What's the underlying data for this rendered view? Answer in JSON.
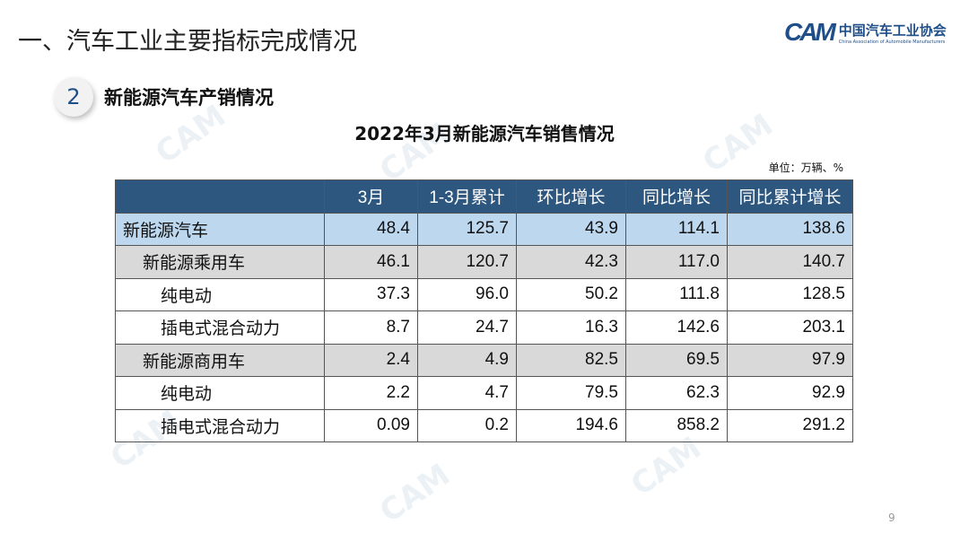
{
  "header": {
    "title": "一、汽车工业主要指标完成情况"
  },
  "logo": {
    "mark": "CAM",
    "name_cn": "中国汽车工业协会",
    "name_en": "China Association of Automobile Manufacturers"
  },
  "section": {
    "number": "2",
    "label": "新能源汽车产销情况"
  },
  "table": {
    "title": "2022年3月新能源汽车销售情况",
    "unit": "单位：万辆、%",
    "columns": [
      "",
      "3月",
      "1-3月累计",
      "环比增长",
      "同比增长",
      "同比累计增长"
    ],
    "rows": [
      {
        "label": "新能源汽车",
        "values": [
          "48.4",
          "125.7",
          "43.9",
          "114.1",
          "138.6"
        ]
      },
      {
        "label": "新能源乘用车",
        "values": [
          "46.1",
          "120.7",
          "42.3",
          "117.0",
          "140.7"
        ]
      },
      {
        "label": "纯电动",
        "values": [
          "37.3",
          "96.0",
          "50.2",
          "111.8",
          "128.5"
        ]
      },
      {
        "label": "插电式混合动力",
        "values": [
          "8.7",
          "24.7",
          "16.3",
          "142.6",
          "203.1"
        ]
      },
      {
        "label": "新能源商用车",
        "values": [
          "2.4",
          "4.9",
          "82.5",
          "69.5",
          "97.9"
        ]
      },
      {
        "label": "纯电动",
        "values": [
          "2.2",
          "4.7",
          "79.5",
          "62.3",
          "92.9"
        ]
      },
      {
        "label": "插电式混合动力",
        "values": [
          "0.09",
          "0.2",
          "194.6",
          "858.2",
          "291.2"
        ]
      }
    ]
  },
  "page_number": "9",
  "colors": {
    "header_bg": "#2e5780",
    "highlight_row": "#bdd7ee",
    "group_row": "#d9d9d9",
    "brand": "#1f4e89"
  }
}
